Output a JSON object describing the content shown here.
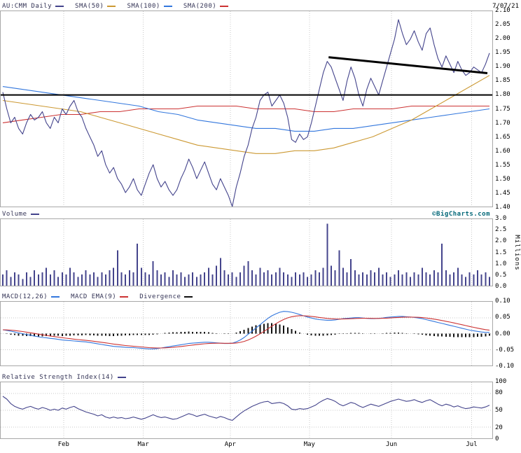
{
  "header": {
    "symbol_label": "AU:CMM Daily",
    "date": "7/07/21"
  },
  "watermark": "©BigCharts.com",
  "colors": {
    "price": "#44448c",
    "sma50": "#cc9933",
    "sma100": "#3377dd",
    "sma200": "#cc3333",
    "annotation": "#000000",
    "watermark": "#006677",
    "grid": "#c8c8c8",
    "panel_border": "#a8a8a8"
  },
  "chart_data": {
    "type": "line",
    "title": "AU:CMM Daily price chart with SMA(50), SMA(100), SMA(200), Volume, MACD and RSI",
    "months": [
      {
        "label": "Feb",
        "x": 0.128
      },
      {
        "label": "Mar",
        "x": 0.29
      },
      {
        "label": "Apr",
        "x": 0.467
      },
      {
        "label": "May",
        "x": 0.628
      },
      {
        "label": "Jun",
        "x": 0.795
      },
      {
        "label": "Jul",
        "x": 0.958
      }
    ],
    "panels": [
      {
        "id": "price",
        "legend": [
          {
            "label": "AU:CMM Daily",
            "color": "#44448c"
          },
          {
            "label": "SMA(50)",
            "color": "#cc9933"
          },
          {
            "label": "SMA(100)",
            "color": "#3377dd"
          },
          {
            "label": "SMA(200)",
            "color": "#cc3333"
          }
        ],
        "ylim": [
          1.4,
          2.1
        ],
        "yticks": [
          "2.10",
          "2.05",
          "2.00",
          "1.95",
          "1.90",
          "1.85",
          "1.80",
          "1.75",
          "1.70",
          "1.65",
          "1.60",
          "1.55",
          "1.50",
          "1.45",
          "1.40"
        ],
        "series": [
          {
            "name": "SMA(200)",
            "color": "#cc3333",
            "values": [
              1.7,
              1.71,
              1.72,
              1.73,
              1.73,
              1.74,
              1.74,
              1.75,
              1.75,
              1.75,
              1.76,
              1.76,
              1.76,
              1.75,
              1.75,
              1.75,
              1.74,
              1.74,
              1.75,
              1.75,
              1.75,
              1.76,
              1.76,
              1.76,
              1.76,
              1.76
            ]
          },
          {
            "name": "SMA(100)",
            "color": "#3377dd",
            "values": [
              1.83,
              1.82,
              1.81,
              1.8,
              1.79,
              1.78,
              1.77,
              1.76,
              1.74,
              1.73,
              1.71,
              1.7,
              1.69,
              1.68,
              1.68,
              1.67,
              1.67,
              1.68,
              1.68,
              1.69,
              1.7,
              1.71,
              1.72,
              1.73,
              1.74,
              1.75
            ]
          },
          {
            "name": "SMA(50)",
            "color": "#cc9933",
            "values": [
              1.78,
              1.77,
              1.76,
              1.75,
              1.74,
              1.72,
              1.7,
              1.68,
              1.66,
              1.64,
              1.62,
              1.61,
              1.6,
              1.59,
              1.59,
              1.6,
              1.6,
              1.61,
              1.63,
              1.65,
              1.68,
              1.71,
              1.75,
              1.79,
              1.83,
              1.87
            ]
          },
          {
            "name": "AU:CMM close",
            "color": "#44448c",
            "values": [
              1.81,
              1.75,
              1.7,
              1.72,
              1.68,
              1.66,
              1.7,
              1.73,
              1.71,
              1.72,
              1.74,
              1.7,
              1.68,
              1.72,
              1.7,
              1.75,
              1.73,
              1.76,
              1.78,
              1.74,
              1.72,
              1.68,
              1.65,
              1.62,
              1.58,
              1.6,
              1.55,
              1.52,
              1.54,
              1.5,
              1.48,
              1.45,
              1.47,
              1.5,
              1.46,
              1.44,
              1.48,
              1.52,
              1.55,
              1.5,
              1.47,
              1.49,
              1.46,
              1.44,
              1.46,
              1.5,
              1.53,
              1.57,
              1.54,
              1.5,
              1.53,
              1.56,
              1.52,
              1.48,
              1.46,
              1.5,
              1.47,
              1.44,
              1.4,
              1.47,
              1.52,
              1.58,
              1.62,
              1.68,
              1.72,
              1.78,
              1.8,
              1.81,
              1.76,
              1.78,
              1.8,
              1.77,
              1.72,
              1.64,
              1.63,
              1.66,
              1.64,
              1.65,
              1.7,
              1.76,
              1.82,
              1.88,
              1.92,
              1.9,
              1.86,
              1.82,
              1.78,
              1.85,
              1.9,
              1.86,
              1.8,
              1.76,
              1.82,
              1.86,
              1.83,
              1.8,
              1.85,
              1.9,
              1.95,
              2.0,
              2.07,
              2.02,
              1.98,
              2.0,
              2.03,
              1.99,
              1.96,
              2.02,
              2.04,
              1.98,
              1.93,
              1.9,
              1.94,
              1.91,
              1.88,
              1.92,
              1.89,
              1.87,
              1.88,
              1.9,
              1.89,
              1.88,
              1.91,
              1.95
            ]
          }
        ],
        "annotations": [
          {
            "type": "hline",
            "value": 1.8
          },
          {
            "type": "segment",
            "x1": 0.667,
            "y1": 1.935,
            "x2": 0.99,
            "y2": 1.878
          }
        ]
      },
      {
        "id": "volume",
        "legend": [
          {
            "label": "Volume",
            "color": "#44448c"
          }
        ],
        "ylabel": "Millions",
        "ylim": [
          0,
          3
        ],
        "baseline": 0,
        "yticks": [
          "3.0",
          "2.5",
          "2.0",
          "1.5",
          "1.0",
          "0.5",
          "0.0"
        ],
        "series": [
          {
            "name": "Volume",
            "type": "bars",
            "color": "#44448c",
            "values": [
              0.5,
              0.7,
              0.4,
              0.6,
              0.5,
              0.3,
              0.6,
              0.4,
              0.7,
              0.5,
              0.6,
              0.8,
              0.5,
              0.7,
              0.4,
              0.6,
              0.5,
              0.8,
              0.6,
              0.4,
              0.5,
              0.7,
              0.5,
              0.6,
              0.4,
              0.6,
              0.5,
              0.7,
              0.8,
              1.6,
              0.6,
              0.5,
              0.7,
              0.6,
              1.9,
              0.8,
              0.6,
              0.5,
              1.1,
              0.7,
              0.5,
              0.6,
              0.4,
              0.7,
              0.5,
              0.6,
              0.4,
              0.5,
              0.6,
              0.4,
              0.5,
              0.6,
              0.8,
              0.5,
              0.9,
              1.25,
              0.7,
              0.5,
              0.6,
              0.4,
              0.6,
              0.9,
              1.1,
              0.7,
              0.5,
              0.8,
              0.6,
              0.7,
              0.5,
              0.6,
              0.8,
              0.6,
              0.5,
              0.4,
              0.6,
              0.5,
              0.6,
              0.4,
              0.5,
              0.7,
              0.6,
              0.8,
              2.8,
              0.9,
              0.7,
              1.6,
              0.8,
              0.6,
              1.2,
              0.7,
              0.5,
              0.6,
              0.5,
              0.7,
              0.6,
              0.8,
              0.5,
              0.6,
              0.4,
              0.5,
              0.7,
              0.5,
              0.6,
              0.4,
              0.6,
              0.5,
              0.8,
              0.6,
              0.5,
              0.7,
              0.6,
              1.9,
              0.7,
              0.5,
              0.6,
              0.8,
              0.5,
              0.4,
              0.6,
              0.5,
              0.7,
              0.5,
              0.6,
              0.4
            ]
          }
        ]
      },
      {
        "id": "macd",
        "legend": [
          {
            "label": "MACD(12,26)",
            "color": "#3377dd"
          },
          {
            "label": "MACD EMA(9)",
            "color": "#cc3333"
          },
          {
            "label": "Divergence",
            "color": "#111111"
          }
        ],
        "ylim": [
          -0.1,
          0.1
        ],
        "baseline": 0,
        "grid_values": [
          0.05,
          0,
          -0.05
        ],
        "yticks": [
          "0.10",
          "0.05",
          "0.00",
          "-0.05",
          "-0.10"
        ],
        "series": [
          {
            "name": "MACD(12,26)",
            "color": "#3377dd",
            "values": [
              0.012,
              0.01,
              0.008,
              0.005,
              0.002,
              0.0,
              -0.003,
              -0.005,
              -0.008,
              -0.01,
              -0.012,
              -0.013,
              -0.015,
              -0.016,
              -0.018,
              -0.02,
              -0.021,
              -0.022,
              -0.023,
              -0.024,
              -0.025,
              -0.026,
              -0.028,
              -0.03,
              -0.032,
              -0.034,
              -0.036,
              -0.038,
              -0.04,
              -0.041,
              -0.042,
              -0.043,
              -0.044,
              -0.044,
              -0.045,
              -0.046,
              -0.047,
              -0.048,
              -0.048,
              -0.047,
              -0.045,
              -0.043,
              -0.041,
              -0.039,
              -0.037,
              -0.035,
              -0.033,
              -0.031,
              -0.03,
              -0.029,
              -0.028,
              -0.027,
              -0.027,
              -0.028,
              -0.029,
              -0.03,
              -0.031,
              -0.031,
              -0.03,
              -0.026,
              -0.02,
              -0.012,
              -0.002,
              0.008,
              0.018,
              0.028,
              0.038,
              0.048,
              0.056,
              0.062,
              0.067,
              0.07,
              0.069,
              0.067,
              0.064,
              0.06,
              0.056,
              0.052,
              0.049,
              0.046,
              0.044,
              0.043,
              0.042,
              0.042,
              0.043,
              0.045,
              0.047,
              0.048,
              0.049,
              0.05,
              0.05,
              0.049,
              0.048,
              0.047,
              0.047,
              0.048,
              0.049,
              0.051,
              0.052,
              0.053,
              0.054,
              0.054,
              0.053,
              0.052,
              0.051,
              0.049,
              0.047,
              0.044,
              0.041,
              0.038,
              0.035,
              0.032,
              0.029,
              0.026,
              0.023,
              0.02,
              0.017,
              0.014,
              0.011,
              0.009,
              0.007,
              0.005,
              0.004,
              0.004
            ]
          },
          {
            "name": "MACD EMA(9)",
            "color": "#cc3333",
            "derive": "ema9",
            "source": "MACD(12,26)"
          },
          {
            "name": "Divergence",
            "type": "bars",
            "color": "#111111",
            "derive": "diff",
            "a": "MACD(12,26)",
            "b": "MACD EMA(9)"
          }
        ]
      },
      {
        "id": "rsi",
        "legend": [
          {
            "label": "Relative Strength Index(14)",
            "color": "#44448c"
          }
        ],
        "ylim": [
          0,
          100
        ],
        "grid_values": [
          80,
          50,
          20
        ],
        "yticks": [
          "100",
          "80",
          "50",
          "20",
          "0"
        ],
        "series": [
          {
            "name": "RSI(14)",
            "color": "#44448c",
            "values": [
              75,
              70,
              62,
              57,
              54,
              52,
              55,
              57,
              54,
              52,
              55,
              53,
              50,
              52,
              50,
              54,
              52,
              55,
              57,
              53,
              50,
              47,
              45,
              43,
              40,
              42,
              38,
              36,
              38,
              36,
              37,
              35,
              36,
              38,
              36,
              34,
              36,
              39,
              42,
              39,
              37,
              38,
              36,
              34,
              35,
              38,
              41,
              44,
              42,
              39,
              41,
              43,
              40,
              38,
              36,
              39,
              37,
              34,
              32,
              38,
              44,
              49,
              53,
              57,
              60,
              63,
              65,
              66,
              62,
              63,
              64,
              62,
              58,
              52,
              51,
              53,
              52,
              53,
              56,
              59,
              64,
              68,
              71,
              69,
              66,
              61,
              58,
              61,
              64,
              62,
              58,
              55,
              58,
              61,
              59,
              57,
              60,
              63,
              66,
              68,
              70,
              68,
              66,
              67,
              69,
              66,
              64,
              67,
              69,
              65,
              61,
              58,
              61,
              59,
              56,
              58,
              55,
              53,
              54,
              56,
              55,
              54,
              56,
              59
            ]
          }
        ]
      }
    ]
  }
}
